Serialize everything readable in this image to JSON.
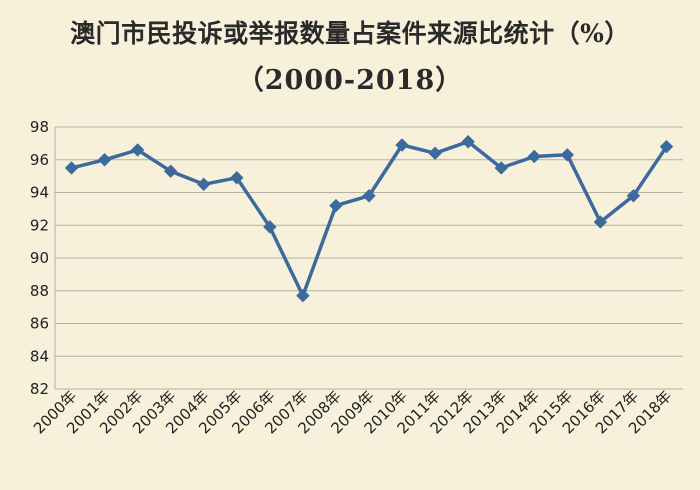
{
  "title": {
    "line1": "澳门市民投诉或举报数量占案件来源比统计（%）",
    "line2": "（2000-2018）"
  },
  "colors": {
    "background": "#f7f0db",
    "line": "#3d6a9c",
    "marker": "#3d6a9c",
    "grid": "#b8b0a0"
  },
  "chart_data": {
    "type": "line",
    "title": "澳门市民投诉或举报数量占案件来源比统计（%）（2000-2018）",
    "categories": [
      "2000年",
      "2001年",
      "2002年",
      "2003年",
      "2004年",
      "2005年",
      "2006年",
      "2007年",
      "2008年",
      "2009年",
      "2010年",
      "2011年",
      "2012年",
      "2013年",
      "2014年",
      "2015年",
      "2016年",
      "2017年",
      "2018年"
    ],
    "series": [
      {
        "values": [
          95.5,
          96.0,
          96.6,
          95.3,
          94.5,
          94.9,
          91.9,
          87.7,
          93.2,
          93.8,
          96.9,
          96.4,
          97.1,
          95.5,
          96.2,
          96.3,
          92.2,
          93.8,
          96.8
        ]
      }
    ],
    "ylim": [
      82,
      98
    ],
    "yticks": [
      82,
      84,
      86,
      88,
      90,
      92,
      94,
      96,
      98
    ],
    "grid": true,
    "legend": "none",
    "marker": "diamond"
  }
}
